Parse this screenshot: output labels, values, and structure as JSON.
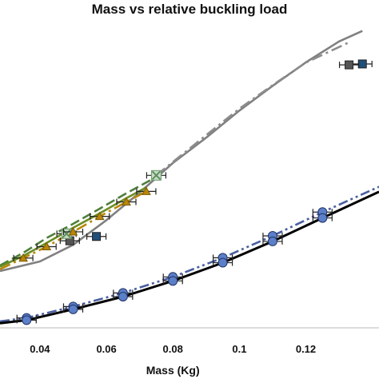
{
  "chart_data": {
    "type": "line",
    "title": "Mass vs relative buckling load",
    "xlabel": "Mass (Kg)",
    "ylabel": "",
    "x_ticks": [
      "0.04",
      "0.06",
      "0.08",
      "0.1",
      "0.12"
    ],
    "xlim": [
      0.028,
      0.142
    ],
    "ylim": [
      0,
      1
    ],
    "grid": false,
    "series": [
      {
        "color": "#1f4e79",
        "marker": "square",
        "line_style": "none",
        "points": [
          {
            "x": 0.057,
            "y": 0.296
          },
          {
            "x": 0.137,
            "y": 0.855
          }
        ]
      },
      {
        "color": "#555555",
        "marker": "square",
        "line_style": "none",
        "points": [
          {
            "x": 0.049,
            "y": 0.282
          },
          {
            "x": 0.133,
            "y": 0.852
          }
        ]
      },
      {
        "color": "#8fbf8f",
        "marker": "x",
        "line_style": "none",
        "points": [
          {
            "x": 0.048,
            "y": 0.305
          },
          {
            "x": 0.075,
            "y": 0.494
          }
        ]
      },
      {
        "color": "#808080",
        "marker": "none",
        "line_style": "solid",
        "points": [
          {
            "x": 0.028,
            "y": 0.184
          },
          {
            "x": 0.04,
            "y": 0.215
          },
          {
            "x": 0.05,
            "y": 0.269
          },
          {
            "x": 0.06,
            "y": 0.349
          },
          {
            "x": 0.07,
            "y": 0.438
          },
          {
            "x": 0.08,
            "y": 0.534
          },
          {
            "x": 0.09,
            "y": 0.616
          },
          {
            "x": 0.1,
            "y": 0.704
          },
          {
            "x": 0.11,
            "y": 0.784
          },
          {
            "x": 0.12,
            "y": 0.86
          },
          {
            "x": 0.13,
            "y": 0.928
          },
          {
            "x": 0.137,
            "y": 0.962
          }
        ]
      },
      {
        "color": "#8c8c8c",
        "marker": "none",
        "line_style": "dash-dot",
        "points": [
          {
            "x": 0.075,
            "y": 0.494
          },
          {
            "x": 0.09,
            "y": 0.624
          },
          {
            "x": 0.1,
            "y": 0.71
          },
          {
            "x": 0.11,
            "y": 0.786
          },
          {
            "x": 0.12,
            "y": 0.859
          },
          {
            "x": 0.133,
            "y": 0.925
          }
        ]
      },
      {
        "color": "#4f7f3a",
        "marker": "none",
        "line_style": "long-dash",
        "points": [
          {
            "x": 0.028,
            "y": 0.202
          },
          {
            "x": 0.035,
            "y": 0.243
          },
          {
            "x": 0.042,
            "y": 0.291
          },
          {
            "x": 0.05,
            "y": 0.337
          },
          {
            "x": 0.058,
            "y": 0.386
          },
          {
            "x": 0.066,
            "y": 0.436
          },
          {
            "x": 0.074,
            "y": 0.483
          }
        ]
      },
      {
        "color": "#6b8e23",
        "marker": "none",
        "line_style": "solid",
        "points": [
          {
            "x": 0.028,
            "y": 0.198
          },
          {
            "x": 0.035,
            "y": 0.233
          },
          {
            "x": 0.042,
            "y": 0.275
          },
          {
            "x": 0.05,
            "y": 0.324
          },
          {
            "x": 0.058,
            "y": 0.371
          },
          {
            "x": 0.066,
            "y": 0.42
          },
          {
            "x": 0.072,
            "y": 0.455
          }
        ]
      },
      {
        "color": "#b8860b",
        "marker": "triangle",
        "line_style": "dash-dot",
        "points": [
          {
            "x": 0.028,
            "y": 0.19
          },
          {
            "x": 0.035,
            "y": 0.226
          },
          {
            "x": 0.042,
            "y": 0.263
          },
          {
            "x": 0.05,
            "y": 0.311
          },
          {
            "x": 0.058,
            "y": 0.361
          },
          {
            "x": 0.066,
            "y": 0.408
          },
          {
            "x": 0.072,
            "y": 0.442
          }
        ]
      },
      {
        "color": "#4a5fa0",
        "marker": "circle",
        "line_style": "dash-dot-dot",
        "points": [
          {
            "x": 0.028,
            "y": 0.021
          },
          {
            "x": 0.036,
            "y": 0.032
          },
          {
            "x": 0.05,
            "y": 0.069
          },
          {
            "x": 0.065,
            "y": 0.113
          },
          {
            "x": 0.08,
            "y": 0.165
          },
          {
            "x": 0.095,
            "y": 0.227
          },
          {
            "x": 0.11,
            "y": 0.298
          },
          {
            "x": 0.125,
            "y": 0.375
          },
          {
            "x": 0.142,
            "y": 0.457
          }
        ]
      },
      {
        "color": "#000000",
        "marker": "circle",
        "line_style": "solid",
        "points": [
          {
            "x": 0.028,
            "y": 0.015
          },
          {
            "x": 0.036,
            "y": 0.025
          },
          {
            "x": 0.05,
            "y": 0.06
          },
          {
            "x": 0.065,
            "y": 0.101
          },
          {
            "x": 0.08,
            "y": 0.152
          },
          {
            "x": 0.095,
            "y": 0.211
          },
          {
            "x": 0.11,
            "y": 0.28
          },
          {
            "x": 0.125,
            "y": 0.356
          },
          {
            "x": 0.142,
            "y": 0.441
          }
        ]
      }
    ]
  }
}
